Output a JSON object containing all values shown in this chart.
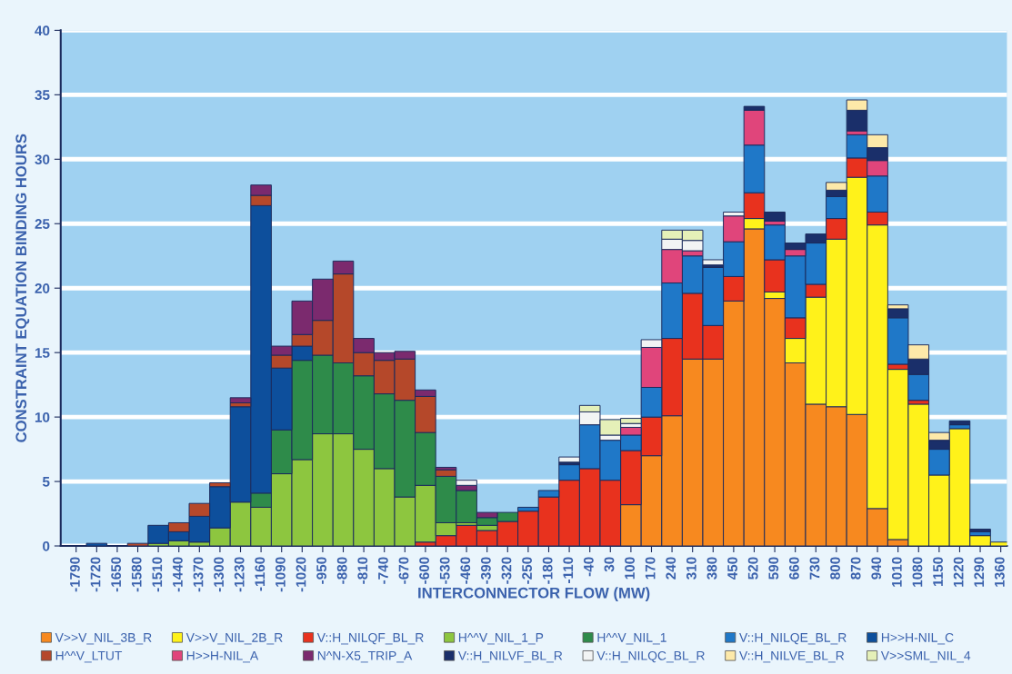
{
  "chart_data": {
    "type": "bar",
    "stacked": true,
    "xlabel": "INTERCONNECTOR FLOW (MW)",
    "ylabel": "CONSTRAINT EQUATION BINDING HOURS",
    "categories": [
      "-1790",
      "-1720",
      "-1650",
      "-1580",
      "-1510",
      "-1440",
      "-1370",
      "-1300",
      "-1230",
      "-1160",
      "-1090",
      "-1020",
      "-950",
      "-880",
      "-810",
      "-740",
      "-670",
      "-600",
      "-530",
      "-460",
      "-390",
      "-320",
      "-250",
      "-180",
      "-110",
      "-40",
      "30",
      "100",
      "170",
      "240",
      "310",
      "380",
      "450",
      "520",
      "590",
      "660",
      "730",
      "800",
      "870",
      "940",
      "1010",
      "1080",
      "1150",
      "1220",
      "1290",
      "1360"
    ],
    "ylim": [
      0,
      40
    ],
    "yticks": [
      0,
      5,
      10,
      15,
      20,
      25,
      30,
      35,
      40
    ],
    "grid": "y",
    "legend": "bottom",
    "series": [
      {
        "name": "V>>V_NIL_3B_R",
        "color": "#f7891f",
        "values": [
          0,
          0,
          0,
          0,
          0,
          0,
          0,
          0,
          0,
          0,
          0,
          0,
          0,
          0,
          0,
          0,
          0,
          0,
          0,
          0,
          0,
          0,
          0,
          0,
          0,
          0,
          0,
          3.2,
          7.0,
          10.1,
          14.5,
          14.5,
          19.0,
          24.6,
          19.2,
          14.2,
          11.0,
          10.8,
          10.2,
          2.9,
          0.5,
          0,
          0,
          0,
          0,
          0
        ]
      },
      {
        "name": "V>>V_NIL_2B_R",
        "color": "#fff21a",
        "values": [
          0,
          0,
          0,
          0,
          0,
          0,
          0,
          0,
          0,
          0,
          0,
          0,
          0,
          0,
          0,
          0,
          0,
          0,
          0,
          0,
          0,
          0,
          0,
          0,
          0,
          0,
          0,
          0,
          0,
          0,
          0,
          0,
          0,
          0.8,
          0.5,
          1.9,
          8.3,
          13.0,
          18.4,
          22.0,
          13.2,
          11.0,
          5.5,
          9.1,
          0.8,
          0.3
        ]
      },
      {
        "name": "V::H_NILQF_BL_R",
        "color": "#e8321e",
        "values": [
          0,
          0,
          0,
          0,
          0,
          0,
          0,
          0,
          0,
          0,
          0,
          0,
          0,
          0,
          0,
          0,
          0,
          0.3,
          0.8,
          1.6,
          1.2,
          1.9,
          2.7,
          3.8,
          5.1,
          6.0,
          5.1,
          4.2,
          3.0,
          6.0,
          5.1,
          2.6,
          1.9,
          2.0,
          2.5,
          1.6,
          1.0,
          1.6,
          1.5,
          1.0,
          0.4,
          0.3,
          0,
          0,
          0,
          0
        ]
      },
      {
        "name": "H^^V_NIL_1_P",
        "color": "#8dc63f",
        "values": [
          0,
          0,
          0,
          0,
          0.2,
          0.4,
          0.3,
          1.4,
          3.4,
          3.0,
          5.6,
          6.7,
          8.7,
          8.7,
          7.5,
          6.0,
          3.8,
          4.4,
          1.0,
          0.2,
          0.4,
          0,
          0,
          0,
          0,
          0,
          0,
          0,
          0,
          0,
          0,
          0,
          0,
          0,
          0,
          0,
          0,
          0,
          0,
          0,
          0,
          0,
          0,
          0,
          0,
          0
        ]
      },
      {
        "name": "H^^V_NIL_1",
        "color": "#2e8b4a",
        "values": [
          0,
          0,
          0,
          0,
          0,
          0,
          0,
          0,
          0,
          1.1,
          3.4,
          7.7,
          6.1,
          5.5,
          5.7,
          5.8,
          7.5,
          4.1,
          3.6,
          2.5,
          0.6,
          0.7,
          0,
          0,
          0,
          0,
          0,
          0,
          0,
          0,
          0,
          0,
          0,
          0,
          0,
          0,
          0,
          0,
          0,
          0,
          0,
          0,
          0,
          0,
          0,
          0
        ]
      },
      {
        "name": "V::H_NILQE_BL_R",
        "color": "#1f78c8",
        "values": [
          0,
          0,
          0,
          0,
          0,
          0,
          0,
          0,
          0,
          0,
          0,
          0,
          0,
          0,
          0,
          0,
          0,
          0,
          0,
          0,
          0,
          0,
          0.3,
          0.5,
          1.2,
          3.4,
          3.1,
          1.2,
          2.3,
          4.3,
          2.9,
          4.5,
          2.7,
          3.7,
          2.7,
          4.8,
          3.2,
          1.7,
          1.8,
          2.8,
          3.6,
          2.0,
          2.0,
          0.3,
          0.3,
          0
        ]
      },
      {
        "name": "H>>H-NIL_C",
        "color": "#0d4f9c",
        "values": [
          0,
          0.2,
          0,
          0,
          1.4,
          0.7,
          2.0,
          3.2,
          7.4,
          22.3,
          4.8,
          1.1,
          0,
          0,
          0,
          0,
          0,
          0,
          0,
          0,
          0,
          0,
          0,
          0,
          0,
          0,
          0,
          0,
          0,
          0,
          0,
          0,
          0,
          0,
          0,
          0,
          0,
          0,
          0,
          0,
          0,
          0,
          0,
          0,
          0,
          0
        ]
      },
      {
        "name": "H^^V_LTUT",
        "color": "#b5482a",
        "values": [
          0,
          0,
          0,
          0.2,
          0,
          0.7,
          1.0,
          0.3,
          0.3,
          0.8,
          1.0,
          0.9,
          2.7,
          6.9,
          1.8,
          2.6,
          3.2,
          2.8,
          0.5,
          0,
          0,
          0,
          0,
          0,
          0,
          0,
          0,
          0,
          0,
          0,
          0,
          0,
          0,
          0,
          0,
          0,
          0,
          0,
          0,
          0,
          0,
          0,
          0,
          0,
          0,
          0
        ]
      },
      {
        "name": "H>>H-NIL_A",
        "color": "#e0457b",
        "values": [
          0,
          0,
          0,
          0,
          0,
          0,
          0,
          0,
          0,
          0,
          0,
          0,
          0,
          0,
          0,
          0,
          0,
          0,
          0,
          0,
          0,
          0,
          0,
          0,
          0,
          0,
          0,
          0.6,
          3.1,
          2.6,
          0.4,
          0,
          2.0,
          2.7,
          0.3,
          0.5,
          0,
          0,
          0.3,
          1.2,
          0,
          0,
          0,
          0,
          0,
          0
        ]
      },
      {
        "name": "N^N-X5_TRIP_A",
        "color": "#7b2a6e",
        "values": [
          0,
          0,
          0,
          0,
          0,
          0,
          0,
          0,
          0.4,
          0.8,
          0.7,
          2.6,
          3.2,
          1.0,
          1.1,
          0.6,
          0.6,
          0.5,
          0.2,
          0.4,
          0.4,
          0,
          0,
          0,
          0,
          0,
          0,
          0,
          0,
          0,
          0,
          0,
          0,
          0,
          0,
          0,
          0,
          0,
          0,
          0,
          0,
          0,
          0,
          0,
          0,
          0
        ]
      },
      {
        "name": "V::H_NILVF_BL_R",
        "color": "#1a2f6a",
        "values": [
          0,
          0,
          0,
          0,
          0,
          0,
          0,
          0,
          0,
          0,
          0,
          0,
          0,
          0,
          0,
          0,
          0,
          0,
          0,
          0,
          0,
          0,
          0,
          0,
          0.2,
          0,
          0,
          0,
          0,
          0,
          0,
          0.2,
          0,
          0.3,
          0.7,
          0.5,
          0.7,
          0.5,
          1.6,
          1.0,
          0.7,
          1.2,
          0.7,
          0.3,
          0.2,
          0
        ]
      },
      {
        "name": "V::H_NILQC_BL_R",
        "color": "#f2f4f4",
        "values": [
          0,
          0,
          0,
          0,
          0,
          0,
          0,
          0,
          0,
          0,
          0,
          0,
          0,
          0,
          0,
          0,
          0,
          0,
          0,
          0.4,
          0,
          0,
          0,
          0,
          0.4,
          1.0,
          0.4,
          0.3,
          0.6,
          0.8,
          0.8,
          0.4,
          0.3,
          0,
          0,
          0,
          0,
          0,
          0,
          0,
          0,
          0,
          0,
          0,
          0,
          0
        ]
      },
      {
        "name": "V::H_NILVE_BL_R",
        "color": "#fde9a9",
        "values": [
          0,
          0,
          0,
          0,
          0,
          0,
          0,
          0,
          0,
          0,
          0,
          0,
          0,
          0,
          0,
          0,
          0,
          0,
          0,
          0,
          0,
          0,
          0,
          0,
          0,
          0,
          0,
          0,
          0,
          0,
          0,
          0,
          0,
          0,
          0,
          0,
          0,
          0.6,
          0.8,
          1.0,
          0.3,
          1.1,
          0.6,
          0,
          0,
          0
        ]
      },
      {
        "name": "V>>SML_NIL_4",
        "color": "#e5f0b8",
        "values": [
          0,
          0,
          0,
          0,
          0,
          0,
          0,
          0,
          0,
          0,
          0,
          0,
          0,
          0,
          0,
          0,
          0,
          0,
          0,
          0,
          0,
          0,
          0,
          0,
          0,
          0.5,
          1.2,
          0.4,
          0,
          0.7,
          0.8,
          0,
          0,
          0,
          0,
          0,
          0,
          0,
          0,
          0,
          0,
          0,
          0,
          0,
          0,
          0
        ]
      }
    ]
  }
}
